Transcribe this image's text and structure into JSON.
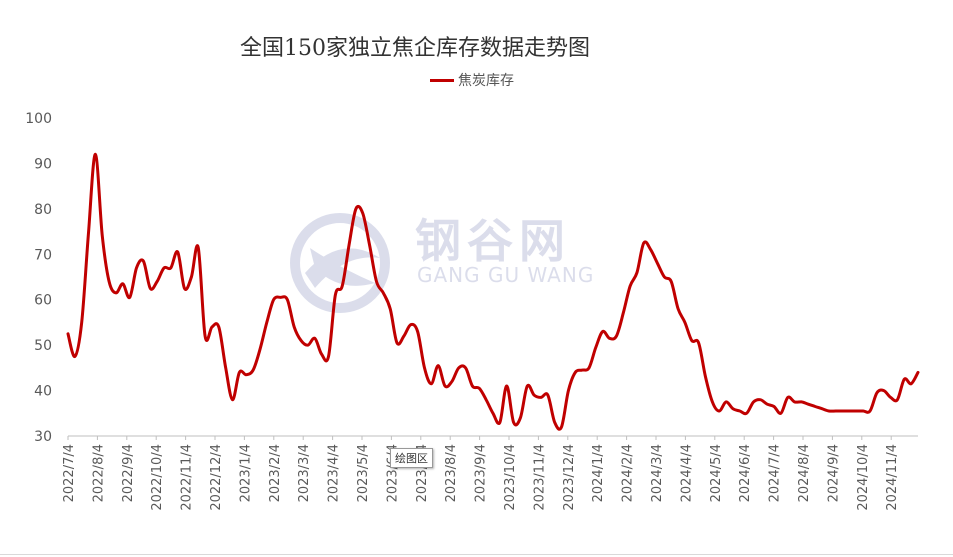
{
  "chart_data": {
    "type": "line",
    "title": "全国150家独立焦企库存数据走势图",
    "ylim": [
      30,
      100
    ],
    "yticks": [
      30,
      40,
      50,
      60,
      70,
      80,
      90,
      100
    ],
    "xlabels": [
      "2022/7/4",
      "2022/8/4",
      "2022/9/4",
      "2022/10/4",
      "2022/11/4",
      "2022/12/4",
      "2023/1/4",
      "2023/2/4",
      "2023/3/4",
      "2023/4/4",
      "2023/5/4",
      "2023/6/4",
      "2023/7/4",
      "2023/8/4",
      "2023/9/4",
      "2023/10/4",
      "2023/11/4",
      "2023/12/4",
      "2024/1/4",
      "2024/2/4",
      "2024/3/4",
      "2024/4/4",
      "2024/5/4",
      "2024/6/4",
      "2024/7/4",
      "2024/8/4",
      "2024/9/4",
      "2024/10/4",
      "2024/11/4"
    ],
    "legend_position": "top-center",
    "grid": false,
    "series": [
      {
        "name": "焦炭库存",
        "color": "#c00000",
        "values": [
          52.5,
          47.5,
          55,
          75,
          92,
          74,
          64,
          61.5,
          63.5,
          60.5,
          67,
          68.5,
          62.5,
          64,
          67,
          67,
          70.5,
          62.5,
          65,
          71.5,
          52,
          54,
          54,
          45,
          38,
          44,
          43.5,
          44.5,
          49,
          55,
          60,
          60.5,
          60,
          54,
          51,
          50,
          51.5,
          48,
          47.5,
          61,
          63,
          72,
          80,
          79,
          72,
          64,
          61.5,
          58,
          50.5,
          52,
          54.5,
          53,
          45,
          41.5,
          45.5,
          41,
          42,
          45,
          45,
          41,
          40.5,
          38,
          35,
          33,
          41,
          33,
          34,
          41,
          39,
          38.5,
          39,
          33,
          32,
          40,
          44,
          44.5,
          45,
          49.5,
          53,
          51.5,
          52,
          57,
          63,
          66,
          72.5,
          71,
          68,
          65,
          64,
          58,
          55,
          51,
          50.5,
          43,
          37.5,
          35.5,
          37.5,
          36,
          35.5,
          35,
          37.5,
          38,
          37,
          36.5,
          35,
          38.5,
          37.5,
          37.5,
          37,
          36.5,
          36,
          35.5,
          35.5,
          35.5,
          35.5,
          35.5,
          35.5,
          35.5,
          39.5,
          40,
          38.5,
          38,
          42.5,
          41.5,
          44
        ]
      }
    ]
  },
  "legend": {
    "label": "焦炭库存"
  },
  "watermark": {
    "cn": "钢谷网",
    "en": "GANG GU WANG"
  },
  "tooltip": {
    "label": "绘图区"
  }
}
